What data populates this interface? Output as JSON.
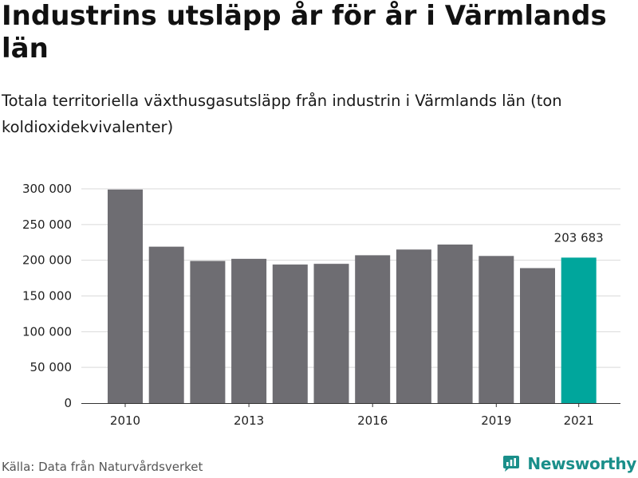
{
  "title": "Industrins utsläpp år för år i Värmlands län",
  "subtitle": "Totala territoriella växthusgasutsläpp från industrin i Värmlands län (ton koldioxidekvivalenter)",
  "source": "Källa: Data från Naturvårdsverket",
  "brand": {
    "name": "Newsworthy",
    "icon": "newsworthy-logo-icon"
  },
  "colors": {
    "bar": "#6e6d72",
    "highlight": "#00a69c",
    "grid": "#d9d9d9",
    "brand": "#1a8f8a"
  },
  "chart_data": {
    "type": "bar",
    "title": "Industrins utsläpp år för år i Värmlands län",
    "xlabel": "",
    "ylabel": "",
    "categories": [
      "2010",
      "2011",
      "2012",
      "2013",
      "2014",
      "2015",
      "2016",
      "2017",
      "2018",
      "2019",
      "2020",
      "2021"
    ],
    "values": [
      299000,
      219000,
      199000,
      202000,
      194000,
      195000,
      207000,
      215000,
      222000,
      206000,
      189000,
      203683
    ],
    "highlight_index": 11,
    "highlight_label": "203 683",
    "x_tick_labels": [
      "2010",
      "2013",
      "2016",
      "2019",
      "2021"
    ],
    "y_ticks": [
      0,
      50000,
      100000,
      150000,
      200000,
      250000,
      300000
    ],
    "y_tick_labels": [
      "0",
      "50 000",
      "100 000",
      "150 000",
      "200 000",
      "250 000",
      "300 000"
    ],
    "ylim": [
      0,
      300000
    ],
    "grid": true,
    "legend": "none"
  }
}
